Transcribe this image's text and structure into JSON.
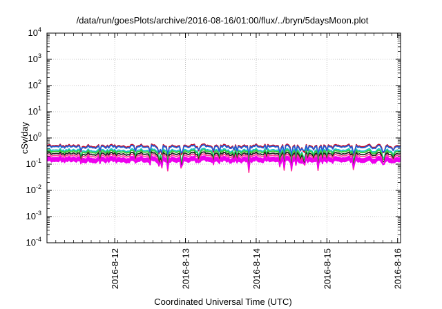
{
  "chart_data": {
    "type": "line",
    "title": "/data/run/goesPlots/archive/2016-08-16/01:00/flux/../bryn/5daysMoon.plot",
    "xlabel": "Coordinated Universal Time (UTC)",
    "ylabel": "cSv/day",
    "yscale": "log",
    "ylim": [
      0.0001,
      10000
    ],
    "y_ticks": [
      {
        "base": "10",
        "exp": "-4",
        "value": 0.0001
      },
      {
        "base": "10",
        "exp": "-3",
        "value": 0.001
      },
      {
        "base": "10",
        "exp": "-2",
        "value": 0.01
      },
      {
        "base": "10",
        "exp": "-1",
        "value": 0.1
      },
      {
        "base": "10",
        "exp": "0",
        "value": 1
      },
      {
        "base": "10",
        "exp": "1",
        "value": 10
      },
      {
        "base": "10",
        "exp": "2",
        "value": 100
      },
      {
        "base": "10",
        "exp": "3",
        "value": 1000
      },
      {
        "base": "10",
        "exp": "4",
        "value": 10000
      }
    ],
    "xlim": [
      "2016-08-11 01:00",
      "2016-08-16 01:00"
    ],
    "x_ticks": [
      "2016-8-12",
      "2016-8-13",
      "2016-8-14",
      "2016-8-15",
      "2016-8-16"
    ],
    "grid": true,
    "series": [
      {
        "color": "#c8102e",
        "base": 0.5,
        "dip": 0.62
      },
      {
        "color": "#1f5fd6",
        "base": 0.46,
        "dip": 0.45
      },
      {
        "color": "#19c3c3",
        "base": 0.34,
        "dip": 0.7
      },
      {
        "color": "#33cc33",
        "base": 0.3,
        "dip": 0.72
      },
      {
        "color": "#222222",
        "base": 0.25,
        "dip": 0.74
      },
      {
        "color": "#ff3d9a",
        "base": 0.21,
        "dip": 0.76
      },
      {
        "color": "#ee00ee",
        "base": 0.175,
        "dip": 0.62
      }
    ],
    "fill_band": {
      "color": "#ee00ee",
      "low": 0.12,
      "high": 0.175
    }
  }
}
